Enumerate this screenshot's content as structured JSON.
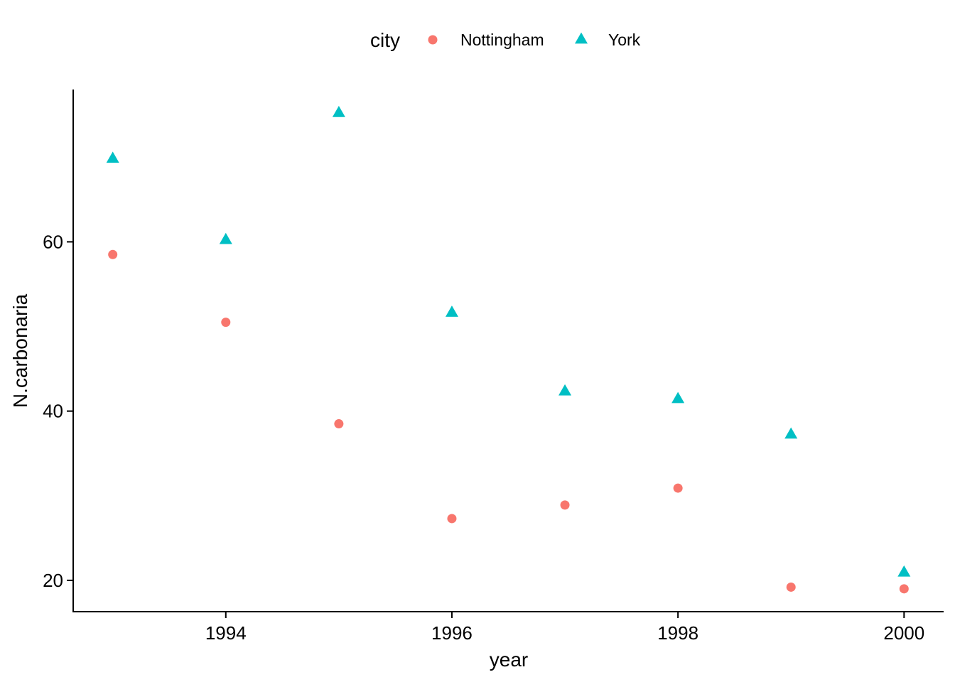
{
  "chart_data": {
    "type": "scatter",
    "xlabel": "year",
    "ylabel": "N.carbonaria",
    "xlim": [
      1992.65,
      2000.35
    ],
    "ylim": [
      16.3,
      78.0
    ],
    "x_ticks": [
      1994,
      1996,
      1998,
      2000
    ],
    "y_ticks": [
      20,
      40,
      60
    ],
    "grid": false,
    "legend": {
      "title": "city",
      "position": "top"
    },
    "series": [
      {
        "name": "Nottingham",
        "shape": "circle",
        "color": "#F8766D",
        "points": [
          {
            "x": 1993,
            "y": 58.5
          },
          {
            "x": 1994,
            "y": 50.5
          },
          {
            "x": 1995,
            "y": 38.5
          },
          {
            "x": 1996,
            "y": 27.3
          },
          {
            "x": 1997,
            "y": 28.9
          },
          {
            "x": 1998,
            "y": 30.9
          },
          {
            "x": 1999,
            "y": 19.2
          },
          {
            "x": 2000,
            "y": 19.0
          }
        ]
      },
      {
        "name": "York",
        "shape": "triangle",
        "color": "#00BFC4",
        "points": [
          {
            "x": 1993,
            "y": 69.8
          },
          {
            "x": 1994,
            "y": 60.2
          },
          {
            "x": 1995,
            "y": 75.2
          },
          {
            "x": 1996,
            "y": 51.6
          },
          {
            "x": 1997,
            "y": 42.3
          },
          {
            "x": 1998,
            "y": 41.4
          },
          {
            "x": 1999,
            "y": 37.2
          },
          {
            "x": 2000,
            "y": 20.9
          }
        ]
      }
    ]
  }
}
